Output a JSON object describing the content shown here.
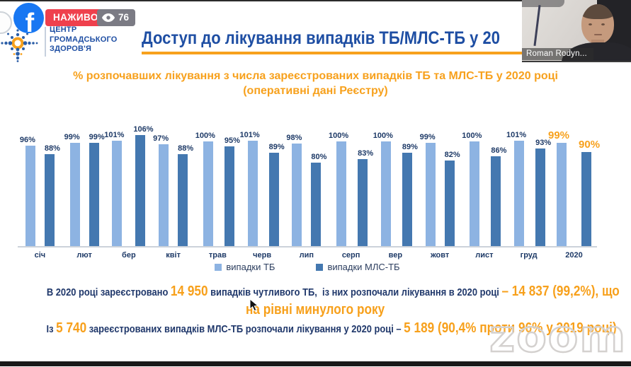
{
  "stream": {
    "platform_icon": "facebook",
    "live_badge_label": "НАЖИВО",
    "viewer_count": "76",
    "presenter_name": "Roman Rodyn..."
  },
  "logo": {
    "line1": "ЦЕНТР",
    "line2": "ГРОМАДСЬКОГО",
    "line3": "ЗДОРОВ'Я"
  },
  "slide": {
    "title": "Доступ до лікування випадків ТБ/МЛС-ТБ у 20",
    "subtitle_line1": "% розпочавших лікування з числа зареєстрованих випадків ТБ та МЛС-ТБ у 2020 році",
    "subtitle_line2": "(оперативні дані Реєстру)"
  },
  "chart_data": {
    "type": "bar",
    "title": "% розпочавших лікування з числа зареєстрованих випадків ТБ та МЛС-ТБ у 2020 році (оперативні дані Реєстру)",
    "categories": [
      "січ",
      "лют",
      "бер",
      "квіт",
      "трав",
      "черв",
      "лип",
      "серп",
      "вер",
      "жовт",
      "лист",
      "груд",
      "2020"
    ],
    "series": [
      {
        "name": "випадки ТБ",
        "color": "#8db3e2",
        "values": [
          96,
          99,
          101,
          97,
          100,
          101,
          98,
          100,
          100,
          99,
          100,
          101,
          99
        ]
      },
      {
        "name": "випадки МЛС-ТБ",
        "color": "#4478b0",
        "values": [
          88,
          99,
          106,
          88,
          95,
          89,
          80,
          83,
          89,
          82,
          86,
          93,
          90
        ]
      }
    ],
    "value_suffix": "%",
    "highlight_category": "2020",
    "highlight_color": "#f7a11d",
    "label_color": "#1e3a67",
    "legend_position": "bottom",
    "grid": false,
    "ylim": [
      0,
      110
    ]
  },
  "summary": {
    "line1": [
      {
        "text": "В 2020 році зареєстровано ",
        "style": "navy"
      },
      {
        "text": "14 950",
        "style": "orange"
      },
      {
        "text": " випадків чутливого ТБ,  із них розпочали лікування в 2020 році ",
        "style": "navy"
      },
      {
        "text": "– 14 837 (99,2%), що",
        "style": "orange"
      }
    ],
    "line2": [
      {
        "text": "на рівні минулого року",
        "style": "orange"
      }
    ],
    "line3": [
      {
        "text": "Із ",
        "style": "navy"
      },
      {
        "text": "5 740",
        "style": "orange"
      },
      {
        "text": " зареєстрованих випадків МЛС-ТБ розпочали лікування у 2020 році – ",
        "style": "navy"
      },
      {
        "text": "5 189 (90,4% проти 96% у 2019 році)",
        "style": "orange"
      }
    ]
  },
  "watermark_text": "zoom"
}
